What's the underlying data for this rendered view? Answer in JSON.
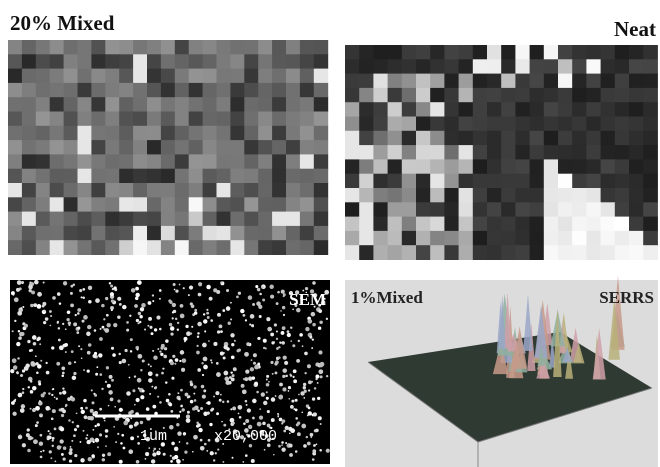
{
  "panels": [
    {
      "title": "20% Mixed"
    },
    {
      "title": "Neat"
    },
    {
      "label": "SEM",
      "scale_bar": "1um",
      "magnification": "x20,000"
    },
    {
      "title": "1%Mixed",
      "label": "SERRS"
    }
  ]
}
